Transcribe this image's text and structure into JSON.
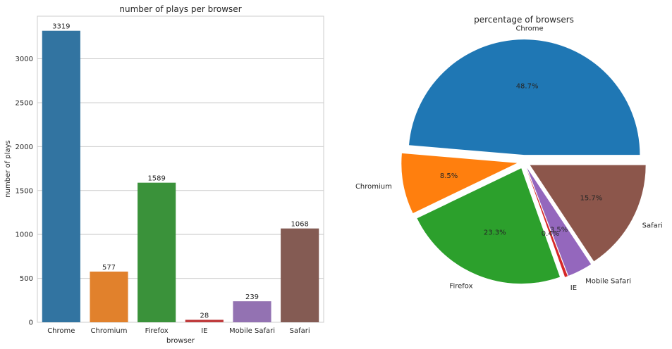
{
  "chart_data": [
    {
      "type": "bar",
      "title": "number of plays per browser",
      "xlabel": "browser",
      "ylabel": "number of plays",
      "categories": [
        "Chrome",
        "Chromium",
        "Firefox",
        "IE",
        "Mobile Safari",
        "Safari"
      ],
      "values": [
        3319,
        577,
        1589,
        28,
        239,
        1068
      ],
      "data_labels": [
        "3319",
        "577",
        "1589",
        "28",
        "239",
        "1068"
      ],
      "colors": [
        "#3274a1",
        "#e1812c",
        "#3a923a",
        "#c03d3e",
        "#9372b2",
        "#845b53"
      ],
      "ylim": [
        0,
        3485
      ],
      "yticks": [
        0,
        500,
        1000,
        1500,
        2000,
        2500,
        3000
      ],
      "ytick_labels": [
        "0",
        "500",
        "1000",
        "1500",
        "2000",
        "2500",
        "3000"
      ],
      "grid": true,
      "grid_axis": "y"
    },
    {
      "type": "pie",
      "title": "percentage of browsers",
      "categories": [
        "Chrome",
        "Chromium",
        "Firefox",
        "IE",
        "Mobile Safari",
        "Safari"
      ],
      "values": [
        48.7,
        8.5,
        23.3,
        0.4,
        3.5,
        15.7
      ],
      "pct_labels": [
        "48.7%",
        "8.5%",
        "23.3%",
        "0.4%",
        "3.5%",
        "15.7%"
      ],
      "colors": [
        "#1f77b4",
        "#ff7f0e",
        "#2ca02c",
        "#d62728",
        "#9467bd",
        "#8c564b"
      ],
      "exploded": true
    }
  ]
}
